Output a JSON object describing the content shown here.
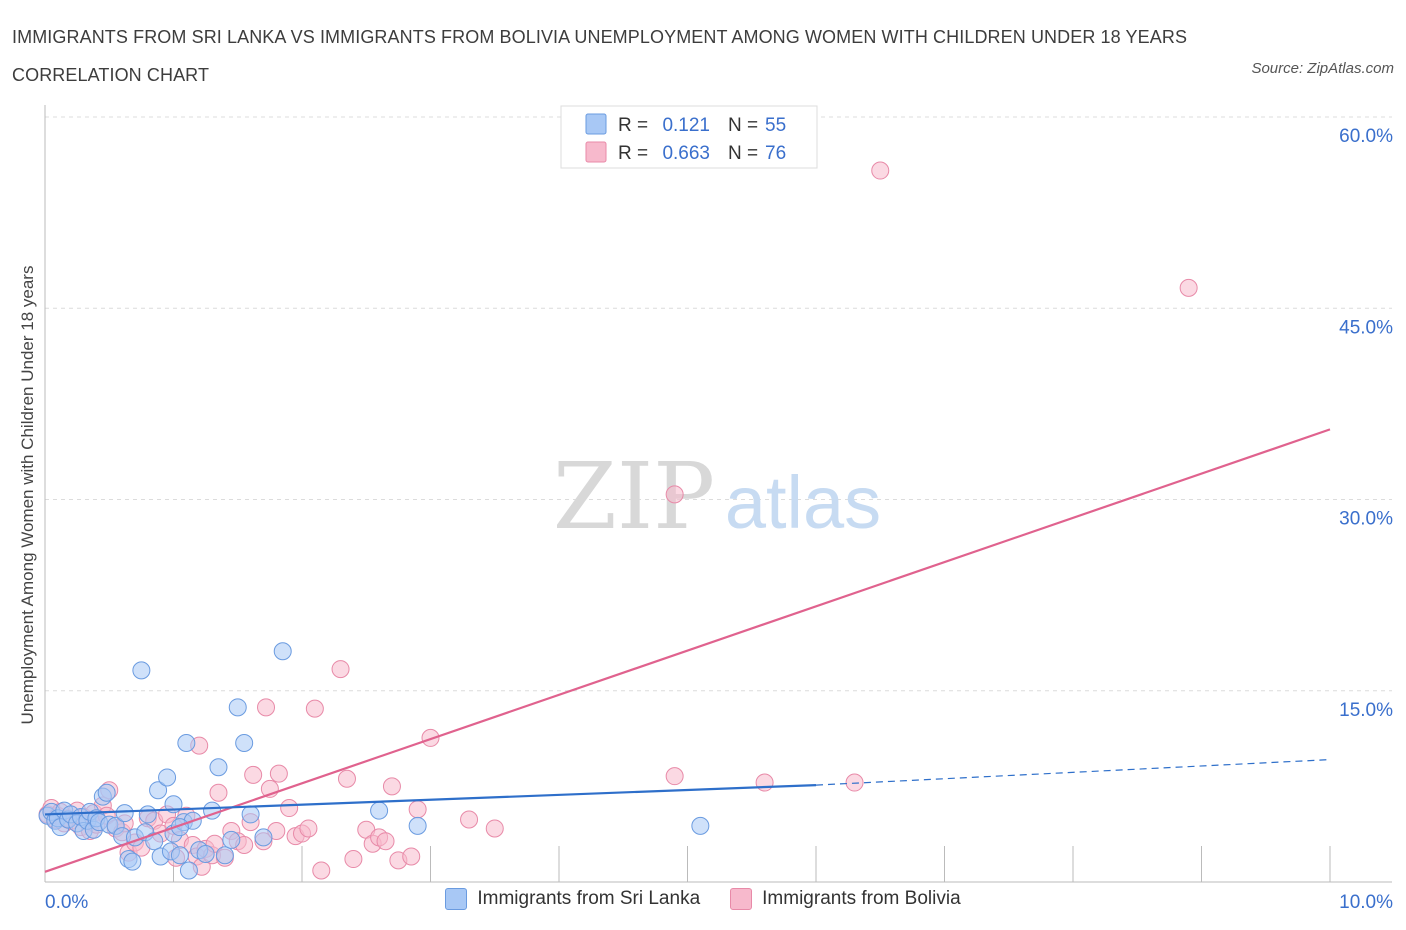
{
  "header": {
    "title": "IMMIGRANTS FROM SRI LANKA VS IMMIGRANTS FROM BOLIVIA UNEMPLOYMENT AMONG WOMEN WITH CHILDREN UNDER 18 YEARS CORRELATION CHART",
    "source": "Source: ZipAtlas.com"
  },
  "watermark": {
    "zip": "ZIP",
    "atlas": "atlas"
  },
  "legend": {
    "rows": [
      {
        "r_label": "R =",
        "r_value": "0.121",
        "n_label": "N =",
        "n_value": "55"
      },
      {
        "r_label": "R =",
        "r_value": "0.663",
        "n_label": "N =",
        "n_value": "76"
      }
    ]
  },
  "bottom_legend": {
    "series1": "Immigrants from Sri Lanka",
    "series2": "Immigrants from Bolivia"
  },
  "colors": {
    "sri_lanka_fill": "#a8c8f5",
    "sri_lanka_stroke": "#6a9be0",
    "sri_lanka_line": "#2e6fca",
    "bolivia_fill": "#f7b9cc",
    "bolivia_stroke": "#e88aa8",
    "bolivia_line": "#e0628e",
    "axis_text": "#3a6fcc"
  },
  "chart_data": {
    "type": "scatter",
    "title": "IMMIGRANTS FROM SRI LANKA VS IMMIGRANTS FROM BOLIVIA UNEMPLOYMENT AMONG WOMEN WITH CHILDREN UNDER 18 YEARS CORRELATION CHART",
    "xlabel": "",
    "ylabel": "Unemployment Among Women with Children Under 18 years",
    "xlim": [
      0,
      10
    ],
    "ylim": [
      0,
      60
    ],
    "x_tick_labels": [
      "0.0%",
      "10.0%"
    ],
    "y_ticks": [
      15,
      30,
      45,
      60
    ],
    "y_tick_labels": [
      "15.0%",
      "30.0%",
      "45.0%",
      "60.0%"
    ],
    "grid": true,
    "legend_position": "top-center",
    "series": [
      {
        "name": "Immigrants from Sri Lanka",
        "R": 0.121,
        "N": 55,
        "trend": {
          "x": [
            0.0,
            6.0
          ],
          "y": [
            5.3,
            7.6
          ],
          "dashed_to_x": 10.0,
          "dashed_to_y": 9.6
        },
        "points": [
          [
            0.02,
            5.2
          ],
          [
            0.05,
            5.5
          ],
          [
            0.08,
            4.8
          ],
          [
            0.1,
            5.0
          ],
          [
            0.12,
            4.3
          ],
          [
            0.15,
            5.6
          ],
          [
            0.18,
            4.9
          ],
          [
            0.2,
            5.3
          ],
          [
            0.25,
            4.6
          ],
          [
            0.28,
            5.1
          ],
          [
            0.3,
            4.0
          ],
          [
            0.33,
            4.8
          ],
          [
            0.35,
            5.5
          ],
          [
            0.38,
            4.1
          ],
          [
            0.4,
            5.0
          ],
          [
            0.42,
            4.7
          ],
          [
            0.45,
            6.7
          ],
          [
            0.48,
            7.0
          ],
          [
            0.5,
            4.5
          ],
          [
            0.55,
            4.4
          ],
          [
            0.6,
            3.6
          ],
          [
            0.62,
            5.4
          ],
          [
            0.65,
            1.8
          ],
          [
            0.68,
            1.6
          ],
          [
            0.7,
            3.5
          ],
          [
            0.75,
            16.6
          ],
          [
            0.78,
            3.9
          ],
          [
            0.8,
            5.3
          ],
          [
            0.85,
            3.2
          ],
          [
            0.88,
            7.2
          ],
          [
            0.9,
            2.0
          ],
          [
            0.95,
            8.2
          ],
          [
            0.98,
            2.4
          ],
          [
            1.0,
            3.8
          ],
          [
            1.05,
            2.1
          ],
          [
            1.08,
            4.7
          ],
          [
            1.1,
            10.9
          ],
          [
            1.12,
            0.9
          ],
          [
            1.15,
            4.8
          ],
          [
            1.2,
            2.5
          ],
          [
            1.25,
            2.2
          ],
          [
            1.3,
            5.6
          ],
          [
            1.35,
            9.0
          ],
          [
            1.4,
            2.1
          ],
          [
            1.45,
            3.3
          ],
          [
            1.5,
            13.7
          ],
          [
            1.55,
            10.9
          ],
          [
            1.6,
            5.3
          ],
          [
            1.7,
            3.5
          ],
          [
            1.85,
            18.1
          ],
          [
            2.6,
            5.6
          ],
          [
            2.9,
            4.4
          ],
          [
            5.1,
            4.4
          ],
          [
            1.0,
            6.1
          ],
          [
            1.05,
            4.3
          ]
        ]
      },
      {
        "name": "Immigrants from Bolivia",
        "R": 0.663,
        "N": 76,
        "trend": {
          "x": [
            0.0,
            10.0
          ],
          "y": [
            0.8,
            35.5
          ]
        },
        "points": [
          [
            0.02,
            5.3
          ],
          [
            0.05,
            5.8
          ],
          [
            0.08,
            4.9
          ],
          [
            0.1,
            5.2
          ],
          [
            0.12,
            5.5
          ],
          [
            0.15,
            4.6
          ],
          [
            0.18,
            5.0
          ],
          [
            0.2,
            4.8
          ],
          [
            0.25,
            5.6
          ],
          [
            0.28,
            4.3
          ],
          [
            0.3,
            5.1
          ],
          [
            0.35,
            4.0
          ],
          [
            0.38,
            5.4
          ],
          [
            0.4,
            4.5
          ],
          [
            0.45,
            6.0
          ],
          [
            0.48,
            5.2
          ],
          [
            0.5,
            7.2
          ],
          [
            0.55,
            4.2
          ],
          [
            0.6,
            3.9
          ],
          [
            0.62,
            4.6
          ],
          [
            0.65,
            2.3
          ],
          [
            0.7,
            3.1
          ],
          [
            0.75,
            2.7
          ],
          [
            0.8,
            5.0
          ],
          [
            0.85,
            4.8
          ],
          [
            0.9,
            3.8
          ],
          [
            0.95,
            5.3
          ],
          [
            1.0,
            4.4
          ],
          [
            1.02,
            1.9
          ],
          [
            1.05,
            3.3
          ],
          [
            1.1,
            5.2
          ],
          [
            1.15,
            2.9
          ],
          [
            1.18,
            2.0
          ],
          [
            1.2,
            10.7
          ],
          [
            1.22,
            1.2
          ],
          [
            1.25,
            2.6
          ],
          [
            1.3,
            2.1
          ],
          [
            1.32,
            3.0
          ],
          [
            1.35,
            7.0
          ],
          [
            1.4,
            1.9
          ],
          [
            1.45,
            4.0
          ],
          [
            1.5,
            3.2
          ],
          [
            1.55,
            2.9
          ],
          [
            1.6,
            4.7
          ],
          [
            1.62,
            8.4
          ],
          [
            1.7,
            3.2
          ],
          [
            1.72,
            13.7
          ],
          [
            1.75,
            7.3
          ],
          [
            1.8,
            4.0
          ],
          [
            1.82,
            8.5
          ],
          [
            1.9,
            5.8
          ],
          [
            1.95,
            3.6
          ],
          [
            2.0,
            3.8
          ],
          [
            2.05,
            4.2
          ],
          [
            2.1,
            13.6
          ],
          [
            2.15,
            0.9
          ],
          [
            2.3,
            16.7
          ],
          [
            2.35,
            8.1
          ],
          [
            2.4,
            1.8
          ],
          [
            2.5,
            4.1
          ],
          [
            2.55,
            3.0
          ],
          [
            2.6,
            3.5
          ],
          [
            2.65,
            3.2
          ],
          [
            2.7,
            7.5
          ],
          [
            2.75,
            1.7
          ],
          [
            2.85,
            2.0
          ],
          [
            2.9,
            5.7
          ],
          [
            3.0,
            11.3
          ],
          [
            3.3,
            4.9
          ],
          [
            4.9,
            30.4
          ],
          [
            4.9,
            8.3
          ],
          [
            5.6,
            7.8
          ],
          [
            6.3,
            7.8
          ],
          [
            6.5,
            55.8
          ],
          [
            8.9,
            46.6
          ],
          [
            3.5,
            4.2
          ]
        ]
      }
    ]
  }
}
